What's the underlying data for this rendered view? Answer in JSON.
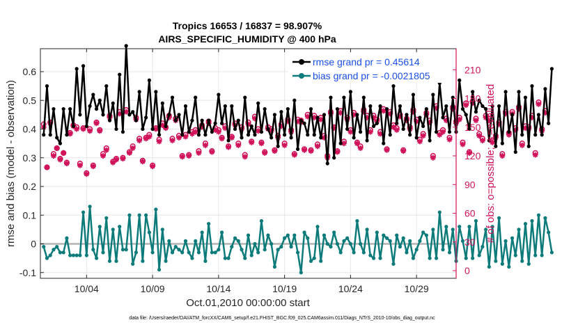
{
  "chart_data": {
    "type": "line",
    "title": "Tropics 16653 / 16837 = 98.907%",
    "subtitle": "AIRS_SPECIFIC_HUMIDITY @ 400 hPa",
    "xlabel": "Oct.01,2010 00:00:00 start",
    "ylabel": "rmse and bias (model - observation)",
    "y2label": "# of obs: o=possible; ∗=evaluated",
    "xlim": [
      0,
      31.5
    ],
    "ylim": [
      -0.12,
      0.68
    ],
    "y2lim": [
      -8,
      232
    ],
    "x_tick_labels": [
      "10/04",
      "10/09",
      "10/14",
      "10/19",
      "10/24",
      "10/29"
    ],
    "x_tick_positions": [
      3.5,
      8.5,
      13.5,
      18.5,
      23.5,
      28.5
    ],
    "y_ticks": [
      "-0.1",
      "0",
      "0.1",
      "0.2",
      "0.3",
      "0.4",
      "0.5",
      "0.6"
    ],
    "y2_ticks": [
      "0",
      "30",
      "60",
      "90",
      "120",
      "150",
      "180",
      "210"
    ],
    "legend": [
      {
        "label": "rmse grand pr = 0.45614",
        "color": "#000000"
      },
      {
        "label": "bias grand pr = -0.0021805",
        "color": "#0e7b7b"
      }
    ],
    "zero_line": 0,
    "colors": {
      "rmse": "#000000",
      "bias": "#0e7b7b",
      "obs": "#d0135a",
      "zero": "#b3b3b3"
    },
    "dt": 0.25,
    "series": [
      {
        "name": "rmse",
        "values": [
          0.38,
          0.55,
          0.38,
          0.47,
          0.37,
          0.35,
          0.47,
          0.38,
          0.47,
          0.41,
          0.61,
          0.45,
          0.62,
          0.41,
          0.48,
          0.52,
          0.47,
          0.5,
          0.45,
          0.55,
          0.43,
          0.49,
          0.4,
          0.59,
          0.39,
          0.69,
          0.45,
          0.46,
          0.43,
          0.53,
          0.4,
          0.44,
          0.57,
          0.4,
          0.53,
          0.38,
          0.49,
          0.41,
          0.45,
          0.51,
          0.43,
          0.45,
          0.38,
          0.48,
          0.39,
          0.43,
          0.51,
          0.38,
          0.43,
          0.38,
          0.43,
          0.39,
          0.42,
          0.52,
          0.42,
          0.48,
          0.36,
          0.48,
          0.4,
          0.43,
          0.37,
          0.51,
          0.38,
          0.41,
          0.38,
          0.49,
          0.39,
          0.47,
          0.4,
          0.37,
          0.45,
          0.34,
          0.46,
          0.38,
          0.47,
          0.37,
          0.5,
          0.33,
          0.43,
          0.42,
          0.38,
          0.47,
          0.38,
          0.44,
          0.37,
          0.45,
          0.28,
          0.51,
          0.3,
          0.47,
          0.35,
          0.51,
          0.4,
          0.53,
          0.37,
          0.45,
          0.39,
          0.51,
          0.36,
          0.48,
          0.41,
          0.42,
          0.48,
          0.35,
          0.47,
          0.38,
          0.55,
          0.42,
          0.48,
          0.4,
          0.45,
          0.38,
          0.52,
          0.37,
          0.44,
          0.41,
          0.47,
          0.36,
          0.52,
          0.39,
          0.56,
          0.44,
          0.48,
          0.39,
          0.51,
          0.39,
          0.57,
          0.47,
          0.45,
          0.4,
          0.53,
          0.46,
          0.5,
          0.48,
          0.47,
          0.36,
          0.48,
          0.34,
          0.48,
          0.35,
          0.53,
          0.39,
          0.45,
          0.32,
          0.53,
          0.38,
          0.51,
          0.34,
          0.55,
          0.38,
          0.45,
          0.38,
          0.54,
          0.42,
          0.61
        ],
        "label_ref": "rmse grand pr = 0.45614"
      },
      {
        "name": "bias",
        "values": [
          -0.01,
          -0.05,
          -0.04,
          -0.02,
          -0.01,
          -0.03,
          -0.03,
          0.02,
          -0.04,
          -0.04,
          -0.04,
          -0.04,
          0.11,
          -0.04,
          0.13,
          -0.02,
          -0.05,
          0.06,
          -0.03,
          0.09,
          -0.06,
          0.05,
          -0.06,
          0.06,
          -0.02,
          -0.02,
          0.1,
          -0.07,
          -0.03,
          0.1,
          -0.06,
          0.1,
          0.04,
          -0.03,
          0.12,
          -0.09,
          0.05,
          -0.06,
          0.01,
          -0.03,
          -0.01,
          -0.02,
          -0.03,
          0.01,
          -0.03,
          -0.05,
          0.01,
          -0.03,
          0.04,
          -0.06,
          0.07,
          -0.03,
          -0.03,
          -0.02,
          0.04,
          -0.05,
          -0.05,
          -0.01,
          0.02,
          0.01,
          -0.02,
          -0.05,
          0.03,
          -0.04,
          0.0,
          -0.03,
          0.08,
          -0.02,
          0.03,
          0.0,
          -0.08,
          -0.02,
          -0.01,
          0.02,
          0.03,
          -0.01,
          0.03,
          -0.03,
          -0.1,
          0.04,
          0.02,
          -0.06,
          -0.05,
          0.06,
          -0.06,
          0.03,
          0.0,
          -0.01,
          0.04,
          0.0,
          -0.03,
          0.01,
          0.02,
          0.0,
          -0.03,
          0.08,
          0.0,
          -0.03,
          0.05,
          -0.04,
          -0.05,
          0.04,
          -0.05,
          0.03,
          0.02,
          0.01,
          -0.07,
          0.03,
          -0.01,
          0.02,
          -0.03,
          0.01,
          -0.05,
          -0.02,
          0.01,
          0.04,
          0.03,
          -0.05,
          0.05,
          -0.05,
          0.11,
          -0.02,
          0.06,
          -0.03,
          0.05,
          -0.06,
          0.06,
          0.01,
          -0.05,
          0.06,
          -0.05,
          0.08,
          -0.04,
          -0.01,
          0.05,
          -0.08,
          0.06,
          -0.06,
          0.09,
          -0.07,
          0.01,
          -0.08,
          0.02,
          -0.04,
          0.05,
          -0.06,
          0.07,
          -0.07,
          0.08,
          -0.04,
          0.1,
          -0.04,
          0.09,
          0.04,
          -0.03
        ],
        "label_ref": "bias grand pr = -0.0021805"
      },
      {
        "name": "obs_possible",
        "axis": "right",
        "values": [
          153,
          108,
          155,
          122,
          128,
          117,
          123,
          113,
          144,
          152,
          150,
          112,
          149,
          102,
          148,
          110,
          155,
          147,
          122,
          128,
          162,
          114,
          117,
          166,
          118,
          168,
          124,
          130,
          160,
          138,
          115,
          139,
          142,
          110,
          149,
          137,
          154,
          150,
          162,
          138,
          159,
          141,
          120,
          142,
          121,
          145,
          147,
          125,
          152,
          133,
          156,
          125,
          149,
          147,
          139,
          151,
          130,
          140,
          154,
          133,
          150,
          121,
          155,
          135,
          161,
          148,
          134,
          124,
          150,
          148,
          126,
          141,
          153,
          133,
          158,
          147,
          122,
          158,
          157,
          127,
          163,
          126,
          162,
          132,
          160,
          141,
          120,
          166,
          150,
          125,
          167,
          135,
          160,
          147,
          165,
          134,
          130,
          168,
          162,
          147,
          162,
          158,
          145,
          169,
          127,
          166,
          152,
          149,
          163,
          126,
          159,
          150,
          168,
          158,
          137,
          143,
          165,
          157,
          120,
          172,
          144,
          147,
          159,
          139,
          171,
          156,
          160,
          134,
          175,
          124,
          177,
          159,
          143,
          138,
          162,
          159,
          136,
          141,
          155,
          122,
          166,
          144,
          166,
          149,
          171,
          133,
          151,
          150,
          162,
          123,
          176,
          148,
          167
        ],
        "label_ref": "# of obs: o=possible; ∗=evaluated"
      },
      {
        "name": "obs_evaluated",
        "axis": "right",
        "values": [
          150,
          108,
          154,
          120,
          128,
          116,
          123,
          112,
          143,
          151,
          148,
          110,
          148,
          101,
          146,
          109,
          154,
          146,
          120,
          126,
          160,
          113,
          116,
          164,
          117,
          166,
          123,
          128,
          158,
          136,
          114,
          138,
          140,
          109,
          148,
          135,
          152,
          149,
          160,
          136,
          157,
          139,
          119,
          140,
          120,
          143,
          145,
          123,
          150,
          131,
          154,
          124,
          147,
          145,
          138,
          149,
          129,
          139,
          152,
          131,
          148,
          119,
          153,
          134,
          159,
          146,
          133,
          123,
          148,
          146,
          125,
          139,
          151,
          131,
          156,
          145,
          121,
          156,
          155,
          126,
          161,
          125,
          160,
          130,
          158,
          139,
          118,
          164,
          149,
          124,
          165,
          133,
          158,
          145,
          163,
          133,
          128,
          166,
          160,
          145,
          160,
          156,
          143,
          167,
          126,
          164,
          150,
          147,
          161,
          125,
          157,
          148,
          166,
          156,
          135,
          141,
          163,
          155,
          118,
          170,
          142,
          145,
          157,
          137,
          169,
          154,
          158,
          132,
          173,
          123,
          175,
          157,
          141,
          136,
          160,
          157,
          134,
          139,
          153,
          120,
          164,
          142,
          164,
          147,
          169,
          131,
          149,
          148,
          160,
          121,
          174,
          146,
          165
        ],
        "label_ref": "# of obs: o=possible; ∗=evaluated"
      }
    ]
  },
  "footer": "data file: /Users/raeder/DAI/ATM_forcXX/CAM6_setup/f.e21.FHIST_BGC.f09_025.CAM6assim.011/Diags_NTrS_2010-10/obs_diag_output.nc"
}
